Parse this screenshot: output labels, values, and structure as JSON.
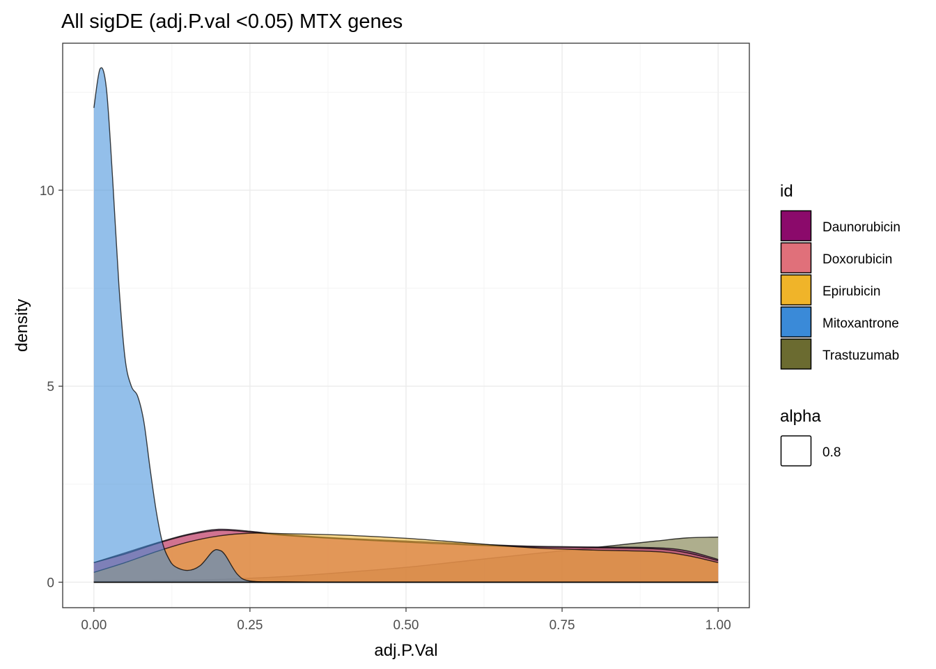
{
  "chart_data": {
    "type": "area",
    "title": "All sigDE (adj.P.val <0.05) MTX genes",
    "xlabel": "adj.P.Val",
    "ylabel": "density",
    "xlim": [
      -0.05,
      1.05
    ],
    "ylim": [
      -0.65,
      13.75
    ],
    "x_ticks": [
      0.0,
      0.25,
      0.5,
      0.75,
      1.0
    ],
    "x_tick_labels": [
      "0.00",
      "0.25",
      "0.50",
      "0.75",
      "1.00"
    ],
    "y_ticks": [
      0,
      5,
      10
    ],
    "y_tick_labels": [
      "0",
      "5",
      "10"
    ],
    "grid": true,
    "fill_alpha": 0.55,
    "series": [
      {
        "name": "Trastuzumab",
        "color": "#6b6b30",
        "points": [
          [
            0.0,
            0.02
          ],
          [
            0.1,
            0.04
          ],
          [
            0.2,
            0.07
          ],
          [
            0.3,
            0.14
          ],
          [
            0.4,
            0.25
          ],
          [
            0.5,
            0.38
          ],
          [
            0.6,
            0.55
          ],
          [
            0.7,
            0.72
          ],
          [
            0.8,
            0.88
          ],
          [
            0.9,
            1.05
          ],
          [
            0.95,
            1.13
          ],
          [
            1.0,
            1.15
          ]
        ]
      },
      {
        "name": "Daunorubicin",
        "color": "#8b0a6b",
        "points": [
          [
            0.0,
            0.5
          ],
          [
            0.05,
            0.75
          ],
          [
            0.1,
            1.0
          ],
          [
            0.15,
            1.22
          ],
          [
            0.2,
            1.35
          ],
          [
            0.25,
            1.3
          ],
          [
            0.3,
            1.22
          ],
          [
            0.4,
            1.12
          ],
          [
            0.5,
            1.05
          ],
          [
            0.6,
            0.98
          ],
          [
            0.7,
            0.92
          ],
          [
            0.8,
            0.9
          ],
          [
            0.9,
            0.88
          ],
          [
            0.95,
            0.8
          ],
          [
            1.0,
            0.58
          ]
        ]
      },
      {
        "name": "Doxorubicin",
        "color": "#e0707a",
        "points": [
          [
            0.0,
            0.5
          ],
          [
            0.05,
            0.72
          ],
          [
            0.1,
            0.98
          ],
          [
            0.15,
            1.2
          ],
          [
            0.2,
            1.32
          ],
          [
            0.25,
            1.28
          ],
          [
            0.3,
            1.2
          ],
          [
            0.4,
            1.1
          ],
          [
            0.5,
            1.02
          ],
          [
            0.6,
            0.95
          ],
          [
            0.7,
            0.9
          ],
          [
            0.8,
            0.88
          ],
          [
            0.9,
            0.85
          ],
          [
            0.95,
            0.75
          ],
          [
            1.0,
            0.55
          ]
        ]
      },
      {
        "name": "Epirubicin",
        "color": "#f0b429",
        "points": [
          [
            0.0,
            0.25
          ],
          [
            0.05,
            0.5
          ],
          [
            0.1,
            0.78
          ],
          [
            0.15,
            1.02
          ],
          [
            0.2,
            1.18
          ],
          [
            0.25,
            1.25
          ],
          [
            0.3,
            1.24
          ],
          [
            0.4,
            1.2
          ],
          [
            0.5,
            1.12
          ],
          [
            0.6,
            1.0
          ],
          [
            0.7,
            0.88
          ],
          [
            0.8,
            0.82
          ],
          [
            0.9,
            0.78
          ],
          [
            0.95,
            0.68
          ],
          [
            1.0,
            0.5
          ]
        ]
      },
      {
        "name": "Mitoxantrone",
        "color": "#3a8ad8",
        "points": [
          [
            0.0,
            12.1
          ],
          [
            0.01,
            13.1
          ],
          [
            0.02,
            12.6
          ],
          [
            0.03,
            10.3
          ],
          [
            0.04,
            7.6
          ],
          [
            0.05,
            5.7
          ],
          [
            0.06,
            5.0
          ],
          [
            0.07,
            4.75
          ],
          [
            0.08,
            4.1
          ],
          [
            0.09,
            2.9
          ],
          [
            0.1,
            1.8
          ],
          [
            0.11,
            1.0
          ],
          [
            0.12,
            0.6
          ],
          [
            0.13,
            0.4
          ],
          [
            0.15,
            0.3
          ],
          [
            0.17,
            0.42
          ],
          [
            0.19,
            0.78
          ],
          [
            0.2,
            0.82
          ],
          [
            0.21,
            0.7
          ],
          [
            0.23,
            0.2
          ],
          [
            0.25,
            0.03
          ],
          [
            0.3,
            0.01
          ],
          [
            0.4,
            0.0
          ],
          [
            0.5,
            0.0
          ],
          [
            0.6,
            0.0
          ],
          [
            0.7,
            0.0
          ],
          [
            0.8,
            0.0
          ],
          [
            0.9,
            0.0
          ],
          [
            1.0,
            0.0
          ]
        ]
      }
    ],
    "legends": [
      {
        "title": "id",
        "entries": [
          {
            "label": "Daunorubicin",
            "color": "#8b0a6b"
          },
          {
            "label": "Doxorubicin",
            "color": "#e0707a"
          },
          {
            "label": "Epirubicin",
            "color": "#f0b429"
          },
          {
            "label": "Mitoxantrone",
            "color": "#3a8ad8"
          },
          {
            "label": "Trastuzumab",
            "color": "#6b6b30"
          }
        ]
      },
      {
        "title": "alpha",
        "entries": [
          {
            "label": "0.8",
            "color": "#ffffff"
          }
        ]
      }
    ],
    "legend_position": "right"
  }
}
